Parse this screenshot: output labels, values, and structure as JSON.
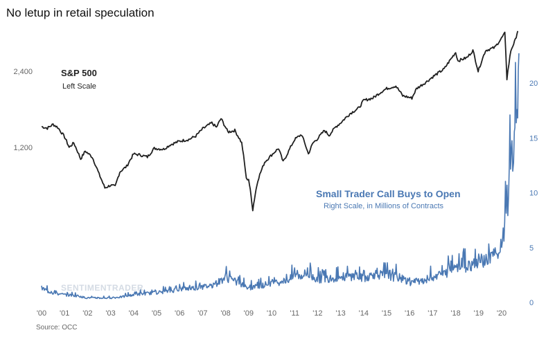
{
  "chart_data": {
    "type": "line",
    "title": "No letup in retail speculation",
    "source": "Source: OCC",
    "watermark": "SENTIMENTRADER",
    "x_tick_labels": [
      "'00",
      "'01",
      "'02",
      "'03",
      "'04",
      "'05",
      "'06",
      "'07",
      "'08",
      "'09",
      "'10",
      "'11",
      "'12",
      "'13",
      "'14",
      "'15",
      "'16",
      "'17",
      "'18",
      "'19",
      "'20"
    ],
    "left_axis": {
      "scale": "log",
      "ticks": [
        1200,
        2400
      ],
      "tick_labels": [
        "1,200",
        "2,400"
      ]
    },
    "right_axis": {
      "ticks": [
        0,
        5,
        10,
        15,
        20
      ],
      "tick_labels": [
        "0",
        "5",
        "10",
        "15",
        "20"
      ],
      "ylim": [
        0,
        20
      ]
    },
    "annotations": {
      "sp500": {
        "title": "S&P 500",
        "subtitle": "Left Scale"
      },
      "small_trader": {
        "title": "Small Trader Call Buys to Open",
        "subtitle": "Right Scale, in Millions of Contracts"
      }
    },
    "series": [
      {
        "name": "S&P 500",
        "axis": "left",
        "color": "#1f1f1f",
        "x": [
          2000.0,
          2000.25,
          2000.5,
          2000.7,
          2001.0,
          2001.2,
          2001.4,
          2001.7,
          2001.9,
          2002.2,
          2002.5,
          2002.75,
          2003.0,
          2003.2,
          2003.4,
          2003.7,
          2004.0,
          2004.3,
          2004.6,
          2004.9,
          2005.3,
          2005.6,
          2006.0,
          2006.4,
          2006.7,
          2007.0,
          2007.4,
          2007.6,
          2007.8,
          2008.1,
          2008.4,
          2008.7,
          2008.9,
          2009.0,
          2009.18,
          2009.4,
          2009.7,
          2010.0,
          2010.3,
          2010.5,
          2010.7,
          2011.0,
          2011.3,
          2011.6,
          2011.8,
          2012.0,
          2012.3,
          2012.5,
          2012.8,
          2013.0,
          2013.4,
          2013.8,
          2014.0,
          2014.4,
          2014.8,
          2015.0,
          2015.4,
          2015.7,
          2016.1,
          2016.3,
          2016.7,
          2017.0,
          2017.5,
          2018.0,
          2018.1,
          2018.5,
          2018.75,
          2018.98,
          2019.3,
          2019.7,
          2020.0,
          2020.14,
          2020.23,
          2020.4,
          2020.6,
          2020.7
        ],
        "y": [
          1450,
          1430,
          1480,
          1440,
          1320,
          1200,
          1250,
          1080,
          1160,
          1100,
          940,
          830,
          850,
          840,
          960,
          1010,
          1130,
          1120,
          1100,
          1190,
          1180,
          1230,
          1270,
          1290,
          1330,
          1420,
          1500,
          1440,
          1560,
          1380,
          1400,
          1250,
          900,
          900,
          680,
          890,
          1050,
          1120,
          1190,
          1050,
          1140,
          1290,
          1350,
          1130,
          1250,
          1300,
          1400,
          1340,
          1450,
          1500,
          1630,
          1720,
          1840,
          1880,
          2000,
          2050,
          2100,
          1920,
          1880,
          2050,
          2170,
          2280,
          2450,
          2850,
          2640,
          2720,
          2900,
          2400,
          2900,
          2980,
          3250,
          3390,
          2240,
          2900,
          3200,
          3480
        ]
      },
      {
        "name": "Small Trader Call Buys to Open",
        "axis": "right",
        "color": "#4a78b3",
        "x": [
          2000.0,
          2000.3,
          2000.6,
          2001.0,
          2001.5,
          2002.0,
          2002.5,
          2003.0,
          2003.5,
          2004.0,
          2004.5,
          2005.0,
          2005.5,
          2006.0,
          2006.5,
          2007.0,
          2007.5,
          2008.0,
          2008.5,
          2009.0,
          2009.5,
          2010.0,
          2010.5,
          2011.0,
          2011.5,
          2012.0,
          2012.5,
          2013.0,
          2013.5,
          2014.0,
          2014.5,
          2015.0,
          2015.5,
          2016.0,
          2016.5,
          2017.0,
          2017.5,
          2018.0,
          2018.5,
          2019.0,
          2019.5,
          2019.9,
          2020.0,
          2020.1,
          2020.2,
          2020.3,
          2020.45,
          2020.55,
          2020.6,
          2020.67,
          2020.75
        ],
        "y": [
          1.3,
          1.0,
          0.8,
          0.7,
          0.6,
          0.4,
          0.4,
          0.4,
          0.5,
          0.7,
          0.8,
          0.9,
          1.0,
          1.2,
          1.3,
          1.4,
          1.6,
          2.3,
          1.8,
          1.3,
          1.5,
          1.8,
          1.9,
          2.3,
          2.6,
          2.1,
          2.2,
          2.3,
          2.4,
          2.2,
          2.6,
          2.4,
          2.3,
          1.8,
          2.0,
          2.2,
          2.6,
          3.2,
          3.3,
          3.8,
          4.0,
          4.5,
          5.5,
          6.5,
          8.5,
          10.0,
          13.0,
          14.5,
          17.0,
          15.0,
          20.0
        ]
      }
    ]
  }
}
